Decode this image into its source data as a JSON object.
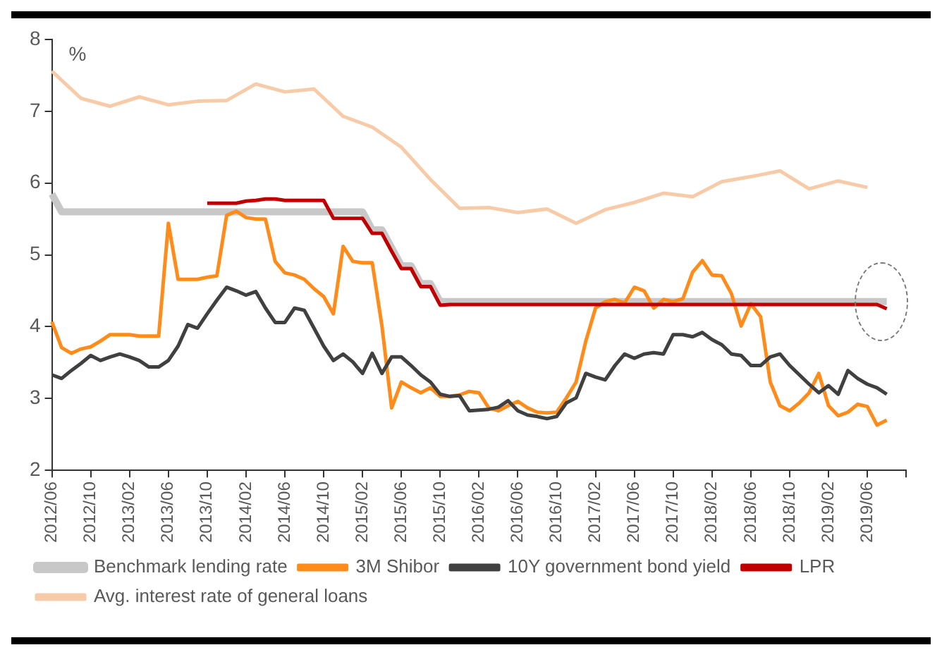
{
  "chart_data": {
    "type": "line",
    "ylabel": "%",
    "categories": [
      "2012/06",
      null,
      null,
      null,
      "2012/10",
      null,
      null,
      null,
      "2013/02",
      null,
      null,
      null,
      "2013/06",
      null,
      null,
      null,
      "2013/10",
      null,
      null,
      null,
      "2014/02",
      null,
      null,
      null,
      "2014/06",
      null,
      null,
      null,
      "2014/10",
      null,
      null,
      null,
      "2015/02",
      null,
      null,
      null,
      "2015/06",
      null,
      null,
      null,
      "2015/10",
      null,
      null,
      null,
      "2016/02",
      null,
      null,
      null,
      "2016/06",
      null,
      null,
      null,
      "2016/10",
      null,
      null,
      null,
      "2017/02",
      null,
      null,
      null,
      "2017/06",
      null,
      null,
      null,
      "2017/10",
      null,
      null,
      null,
      "2018/02",
      null,
      null,
      null,
      "2018/06",
      null,
      null,
      null,
      "2018/10",
      null,
      null,
      null,
      "2019/02",
      null,
      null,
      null,
      "2019/06",
      null,
      null,
      null,
      null
    ],
    "series": [
      {
        "name": "Benchmark lending rate",
        "color": "#c8c8c8",
        "values": [
          5.85,
          5.6,
          5.6,
          5.6,
          5.6,
          5.6,
          5.6,
          5.6,
          5.6,
          5.6,
          5.6,
          5.6,
          5.6,
          5.6,
          5.6,
          5.6,
          5.6,
          5.6,
          5.6,
          5.6,
          5.6,
          5.6,
          5.6,
          5.6,
          5.6,
          5.6,
          5.6,
          5.6,
          5.6,
          5.6,
          5.6,
          5.6,
          5.6,
          5.35,
          5.35,
          5.1,
          4.85,
          4.85,
          4.6,
          4.6,
          4.35,
          4.35,
          4.35,
          4.35,
          4.35,
          4.35,
          4.35,
          4.35,
          4.35,
          4.35,
          4.35,
          4.35,
          4.35,
          4.35,
          4.35,
          4.35,
          4.35,
          4.35,
          4.35,
          4.35,
          4.35,
          4.35,
          4.35,
          4.35,
          4.35,
          4.35,
          4.35,
          4.35,
          4.35,
          4.35,
          4.35,
          4.35,
          4.35,
          4.35,
          4.35,
          4.35,
          4.35,
          4.35,
          4.35,
          4.35,
          4.35,
          4.35,
          4.35,
          4.35,
          4.35,
          4.35,
          4.35,
          null,
          null
        ]
      },
      {
        "name": "3M Shibor",
        "color": "#ff8c1a",
        "values": [
          4.07,
          3.71,
          3.63,
          3.69,
          3.72,
          3.8,
          3.89,
          3.89,
          3.89,
          3.87,
          3.87,
          3.87,
          5.44,
          4.66,
          4.66,
          4.66,
          4.69,
          4.71,
          5.55,
          5.61,
          5.52,
          5.5,
          5.5,
          4.91,
          4.75,
          4.72,
          4.66,
          4.53,
          4.42,
          4.18,
          5.12,
          4.91,
          4.89,
          4.89,
          4.01,
          2.87,
          3.23,
          3.15,
          3.08,
          3.15,
          3.03,
          3.03,
          3.05,
          3.1,
          3.08,
          2.87,
          2.83,
          2.9,
          2.96,
          2.87,
          2.81,
          2.8,
          2.81,
          3.01,
          3.23,
          3.8,
          4.26,
          4.35,
          4.38,
          4.33,
          4.55,
          4.5,
          4.26,
          4.38,
          4.35,
          4.39,
          4.76,
          4.92,
          4.72,
          4.71,
          4.46,
          4.01,
          4.32,
          4.14,
          3.23,
          2.9,
          2.83,
          2.94,
          3.08,
          3.35,
          2.9,
          2.76,
          2.81,
          2.92,
          2.89,
          2.63,
          2.7,
          null,
          null
        ]
      },
      {
        "name": "10Y government bond yield",
        "color": "#404040",
        "values": [
          3.33,
          3.28,
          3.39,
          3.49,
          3.6,
          3.53,
          3.58,
          3.62,
          3.58,
          3.53,
          3.44,
          3.44,
          3.53,
          3.73,
          4.03,
          3.98,
          4.18,
          4.37,
          4.55,
          4.5,
          4.44,
          4.49,
          4.26,
          4.06,
          4.06,
          4.26,
          4.23,
          3.98,
          3.73,
          3.53,
          3.62,
          3.51,
          3.35,
          3.63,
          3.35,
          3.58,
          3.58,
          3.46,
          3.33,
          3.23,
          3.06,
          3.03,
          3.04,
          2.83,
          2.84,
          2.85,
          2.88,
          2.97,
          2.83,
          2.77,
          2.75,
          2.72,
          2.75,
          2.94,
          3.01,
          3.35,
          3.3,
          3.26,
          3.46,
          3.62,
          3.56,
          3.62,
          3.64,
          3.62,
          3.89,
          3.89,
          3.86,
          3.92,
          3.82,
          3.75,
          3.62,
          3.6,
          3.46,
          3.46,
          3.58,
          3.62,
          3.46,
          3.33,
          3.2,
          3.08,
          3.18,
          3.06,
          3.39,
          3.28,
          3.2,
          3.15,
          3.06,
          null,
          null
        ]
      },
      {
        "name": "LPR",
        "color": "#c00000",
        "values": [
          null,
          null,
          null,
          null,
          null,
          null,
          null,
          null,
          null,
          null,
          null,
          null,
          null,
          null,
          null,
          null,
          5.72,
          5.72,
          5.72,
          5.72,
          5.75,
          5.76,
          5.78,
          5.78,
          5.76,
          5.76,
          5.76,
          5.76,
          5.76,
          5.51,
          5.51,
          5.51,
          5.51,
          5.3,
          5.3,
          5.05,
          4.81,
          4.81,
          4.56,
          4.56,
          4.3,
          4.31,
          4.31,
          4.31,
          4.31,
          4.31,
          4.31,
          4.31,
          4.31,
          4.31,
          4.31,
          4.31,
          4.31,
          4.31,
          4.31,
          4.31,
          4.31,
          4.31,
          4.31,
          4.31,
          4.31,
          4.31,
          4.31,
          4.31,
          4.31,
          4.31,
          4.31,
          4.31,
          4.31,
          4.31,
          4.31,
          4.31,
          4.31,
          4.31,
          4.31,
          4.31,
          4.31,
          4.31,
          4.31,
          4.31,
          4.31,
          4.31,
          4.31,
          4.31,
          4.31,
          4.31,
          4.25,
          null,
          null
        ]
      },
      {
        "name": "Avg. interest rate of general loans",
        "color": "#f8cba8",
        "values": [
          7.56,
          null,
          null,
          7.18,
          null,
          null,
          7.07,
          null,
          null,
          7.2,
          null,
          null,
          7.09,
          null,
          null,
          7.14,
          null,
          null,
          7.15,
          null,
          null,
          7.38,
          null,
          null,
          7.27,
          null,
          null,
          7.31,
          null,
          null,
          6.93,
          null,
          null,
          6.78,
          null,
          null,
          6.5,
          null,
          null,
          6.05,
          null,
          null,
          5.65,
          null,
          null,
          5.66,
          null,
          null,
          5.59,
          null,
          null,
          5.64,
          null,
          null,
          5.44,
          null,
          null,
          5.63,
          null,
          null,
          5.73,
          null,
          null,
          5.86,
          null,
          null,
          5.81,
          null,
          null,
          6.02,
          null,
          null,
          6.09,
          null,
          null,
          6.17,
          null,
          null,
          5.92,
          null,
          null,
          6.03,
          null,
          null,
          5.94,
          null,
          null,
          null,
          null
        ]
      }
    ],
    "ylim": [
      2,
      8
    ],
    "yticks": [
      2,
      3,
      4,
      5,
      6,
      7,
      8
    ],
    "grid": false,
    "legend": "bottom",
    "marker": "none",
    "line_style": "solid"
  }
}
